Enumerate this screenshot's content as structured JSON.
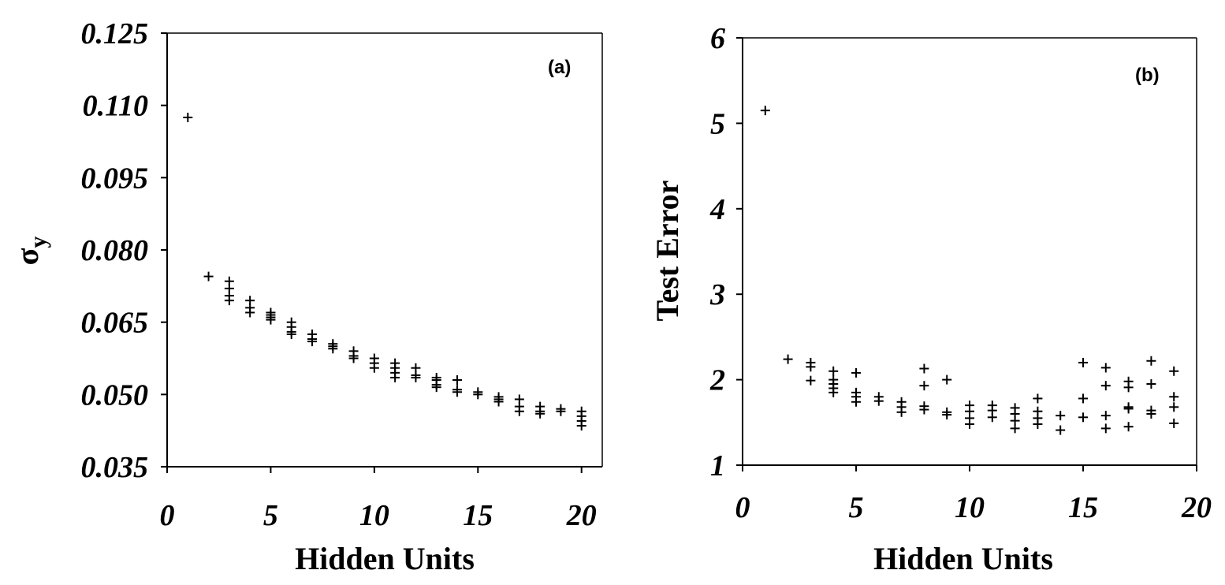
{
  "chart_data": [
    {
      "type": "scatter",
      "panel_label": "(a)",
      "xlabel": "Hidden Units",
      "ylabel": "σ",
      "ylabel_subscript": "y",
      "xlim": [
        0,
        21
      ],
      "ylim": [
        0.035,
        0.125
      ],
      "xticks": [
        "0",
        "5",
        "10",
        "15",
        "20"
      ],
      "yticks": [
        "0.035",
        "0.050",
        "0.065",
        "0.080",
        "0.095",
        "0.110",
        "0.125"
      ],
      "grid": false,
      "points": [
        [
          1,
          0.1075
        ],
        [
          2,
          0.0745
        ],
        [
          3,
          0.0735
        ],
        [
          3,
          0.072
        ],
        [
          3,
          0.0705
        ],
        [
          3,
          0.0695
        ],
        [
          4,
          0.0695
        ],
        [
          4,
          0.068
        ],
        [
          4,
          0.067
        ],
        [
          5,
          0.067
        ],
        [
          5,
          0.0665
        ],
        [
          5,
          0.066
        ],
        [
          5,
          0.0655
        ],
        [
          6,
          0.065
        ],
        [
          6,
          0.064
        ],
        [
          6,
          0.063
        ],
        [
          6,
          0.0625
        ],
        [
          7,
          0.0625
        ],
        [
          7,
          0.0615
        ],
        [
          7,
          0.061
        ],
        [
          8,
          0.0605
        ],
        [
          8,
          0.06
        ],
        [
          8,
          0.0595
        ],
        [
          9,
          0.059
        ],
        [
          9,
          0.058
        ],
        [
          9,
          0.0575
        ],
        [
          10,
          0.0575
        ],
        [
          10,
          0.0565
        ],
        [
          10,
          0.0555
        ],
        [
          11,
          0.0565
        ],
        [
          11,
          0.0555
        ],
        [
          11,
          0.0545
        ],
        [
          11,
          0.0535
        ],
        [
          12,
          0.0555
        ],
        [
          12,
          0.054
        ],
        [
          12,
          0.0535
        ],
        [
          13,
          0.0535
        ],
        [
          13,
          0.053
        ],
        [
          13,
          0.052
        ],
        [
          13,
          0.0515
        ],
        [
          14,
          0.053
        ],
        [
          14,
          0.051
        ],
        [
          14,
          0.0505
        ],
        [
          15,
          0.0505
        ],
        [
          15,
          0.05
        ],
        [
          16,
          0.0495
        ],
        [
          16,
          0.049
        ],
        [
          16,
          0.0485
        ],
        [
          17,
          0.049
        ],
        [
          17,
          0.0475
        ],
        [
          17,
          0.0465
        ],
        [
          18,
          0.0475
        ],
        [
          18,
          0.0465
        ],
        [
          18,
          0.046
        ],
        [
          19,
          0.047
        ],
        [
          19,
          0.0465
        ],
        [
          20,
          0.0465
        ],
        [
          20,
          0.0455
        ],
        [
          20,
          0.0445
        ],
        [
          20,
          0.0435
        ]
      ]
    },
    {
      "type": "scatter",
      "panel_label": "(b)",
      "xlabel": "Hidden Units",
      "ylabel": "Test Error",
      "xlim": [
        0,
        20
      ],
      "ylim": [
        1,
        6
      ],
      "xticks": [
        "0",
        "5",
        "10",
        "15",
        "20"
      ],
      "yticks": [
        "1",
        "2",
        "3",
        "4",
        "5",
        "6"
      ],
      "grid": false,
      "points": [
        [
          1,
          5.15
        ],
        [
          2,
          2.24
        ],
        [
          3,
          2.2
        ],
        [
          3,
          2.15
        ],
        [
          3,
          1.99
        ],
        [
          4,
          2.1
        ],
        [
          4,
          2.0
        ],
        [
          4,
          1.95
        ],
        [
          4,
          1.9
        ],
        [
          4,
          1.85
        ],
        [
          5,
          2.08
        ],
        [
          5,
          1.85
        ],
        [
          5,
          1.8
        ],
        [
          5,
          1.74
        ],
        [
          6,
          1.8
        ],
        [
          6,
          1.75
        ],
        [
          7,
          1.74
        ],
        [
          7,
          1.68
        ],
        [
          7,
          1.62
        ],
        [
          8,
          2.13
        ],
        [
          8,
          1.93
        ],
        [
          8,
          1.69
        ],
        [
          8,
          1.65
        ],
        [
          9,
          2.0
        ],
        [
          9,
          1.62
        ],
        [
          9,
          1.59
        ],
        [
          10,
          1.7
        ],
        [
          10,
          1.63
        ],
        [
          10,
          1.55
        ],
        [
          10,
          1.48
        ],
        [
          11,
          1.7
        ],
        [
          11,
          1.64
        ],
        [
          11,
          1.56
        ],
        [
          12,
          1.67
        ],
        [
          12,
          1.6
        ],
        [
          12,
          1.52
        ],
        [
          12,
          1.43
        ],
        [
          13,
          1.78
        ],
        [
          13,
          1.63
        ],
        [
          13,
          1.55
        ],
        [
          13,
          1.48
        ],
        [
          14,
          1.58
        ],
        [
          14,
          1.41
        ],
        [
          15,
          2.2
        ],
        [
          15,
          1.78
        ],
        [
          15,
          1.56
        ],
        [
          16,
          2.14
        ],
        [
          16,
          1.93
        ],
        [
          16,
          1.58
        ],
        [
          16,
          1.43
        ],
        [
          17,
          1.98
        ],
        [
          17,
          1.91
        ],
        [
          17,
          1.68
        ],
        [
          17,
          1.66
        ],
        [
          17,
          1.45
        ],
        [
          18,
          2.22
        ],
        [
          18,
          1.95
        ],
        [
          18,
          1.64
        ],
        [
          18,
          1.6
        ],
        [
          19,
          2.1
        ],
        [
          19,
          1.8
        ],
        [
          19,
          1.68
        ],
        [
          19,
          1.49
        ]
      ]
    }
  ]
}
